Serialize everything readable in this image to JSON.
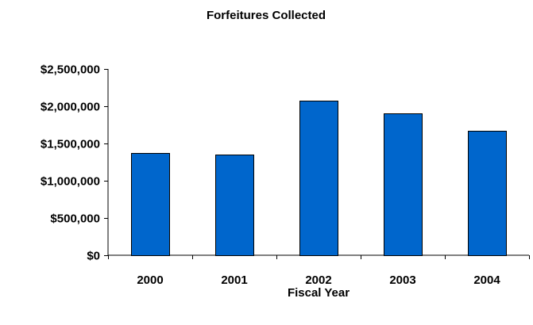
{
  "chart_data": {
    "type": "bar",
    "title": "Forfeitures Collected",
    "xlabel": "Fiscal Year",
    "ylabel": "",
    "categories": [
      "2000",
      "2001",
      "2002",
      "2003",
      "2004"
    ],
    "values": [
      1370000,
      1350000,
      2070000,
      1900000,
      1670000
    ],
    "ylim": [
      0,
      2500000
    ],
    "y_ticks": [
      0,
      500000,
      1000000,
      1500000,
      2000000,
      2500000
    ],
    "y_tick_labels": [
      "$0",
      "$500,000",
      "$1,000,000",
      "$1,500,000",
      "$2,000,000",
      "$2,500,000"
    ],
    "grid": false,
    "legend": "none",
    "bar_color": "#0066CC"
  }
}
